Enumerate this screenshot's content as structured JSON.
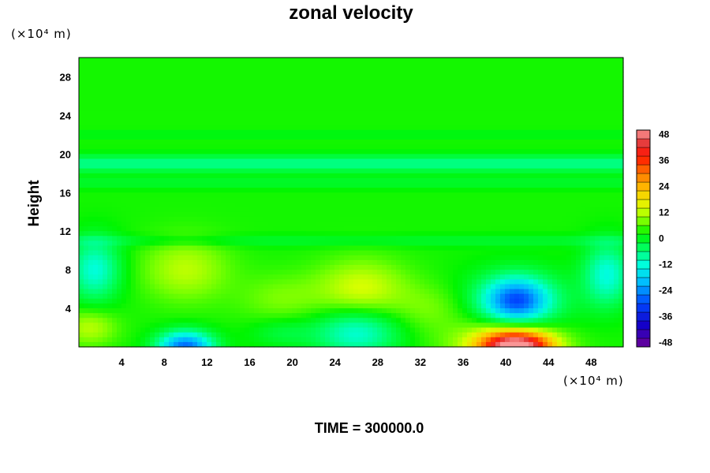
{
  "chart_data": {
    "type": "heatmap",
    "title": "zonal velocity",
    "ylabel": "Height",
    "x_unit_label": "(×10⁴ m)",
    "y_unit_label": "(×10⁴ m)",
    "footer": "TIME = 300000.0",
    "xlim": [
      0,
      51
    ],
    "ylim": [
      0,
      30
    ],
    "x_ticks": [
      "4",
      "8",
      "12",
      "16",
      "20",
      "24",
      "28",
      "32",
      "36",
      "40",
      "44",
      "48"
    ],
    "y_ticks": [
      "4",
      "8",
      "12",
      "16",
      "20",
      "24",
      "28"
    ],
    "colorbar": {
      "min": -50,
      "max": 50,
      "step": 4,
      "ticks": [
        "48",
        "36",
        "24",
        "12",
        "0",
        "-12",
        "-24",
        "-36",
        "-48"
      ]
    },
    "background_value": 3,
    "features": [
      {
        "x": 41,
        "y": 0,
        "value": 44,
        "sx": 3.2,
        "sy": 1.6
      },
      {
        "x": 40,
        "y": 0.4,
        "value": 14,
        "sx": 5.0,
        "sy": 2.6
      },
      {
        "x": 41,
        "y": 4.8,
        "value": -26,
        "sx": 3.0,
        "sy": 2.3
      },
      {
        "x": 41,
        "y": 4.5,
        "value": -8,
        "sx": 5.5,
        "sy": 3.5
      },
      {
        "x": 10,
        "y": 0,
        "value": -30,
        "sx": 2.6,
        "sy": 1.6
      },
      {
        "x": 26,
        "y": 1.5,
        "value": -15,
        "sx": 4.0,
        "sy": 2.5
      },
      {
        "x": 26.5,
        "y": 6,
        "value": 11,
        "sx": 4.2,
        "sy": 3.0
      },
      {
        "x": 10,
        "y": 8,
        "value": 9,
        "sx": 4.0,
        "sy": 3.2
      },
      {
        "x": 1.5,
        "y": 8,
        "value": -15,
        "sx": 2.4,
        "sy": 3.2
      },
      {
        "x": 49.5,
        "y": 7.5,
        "value": -15,
        "sx": 2.2,
        "sy": 3.2
      },
      {
        "x": 1,
        "y": 2,
        "value": 9,
        "sx": 2.5,
        "sy": 1.8
      },
      {
        "x": 19,
        "y": 5,
        "value": 5,
        "sx": 4.0,
        "sy": 2.5
      },
      {
        "x": 33,
        "y": 4,
        "value": 5,
        "sx": 3.5,
        "sy": 2.5
      },
      {
        "x": 19,
        "y": 1.5,
        "value": -5,
        "sx": 3.0,
        "sy": 1.5
      }
    ],
    "bands": [
      {
        "y": 19,
        "value": -10,
        "sy": 0.9
      },
      {
        "y": 17,
        "value": -4,
        "sy": 0.6
      },
      {
        "y": 22,
        "value": -3,
        "sy": 0.4
      },
      {
        "y": 11,
        "value": -4,
        "sy": 0.6
      }
    ]
  }
}
